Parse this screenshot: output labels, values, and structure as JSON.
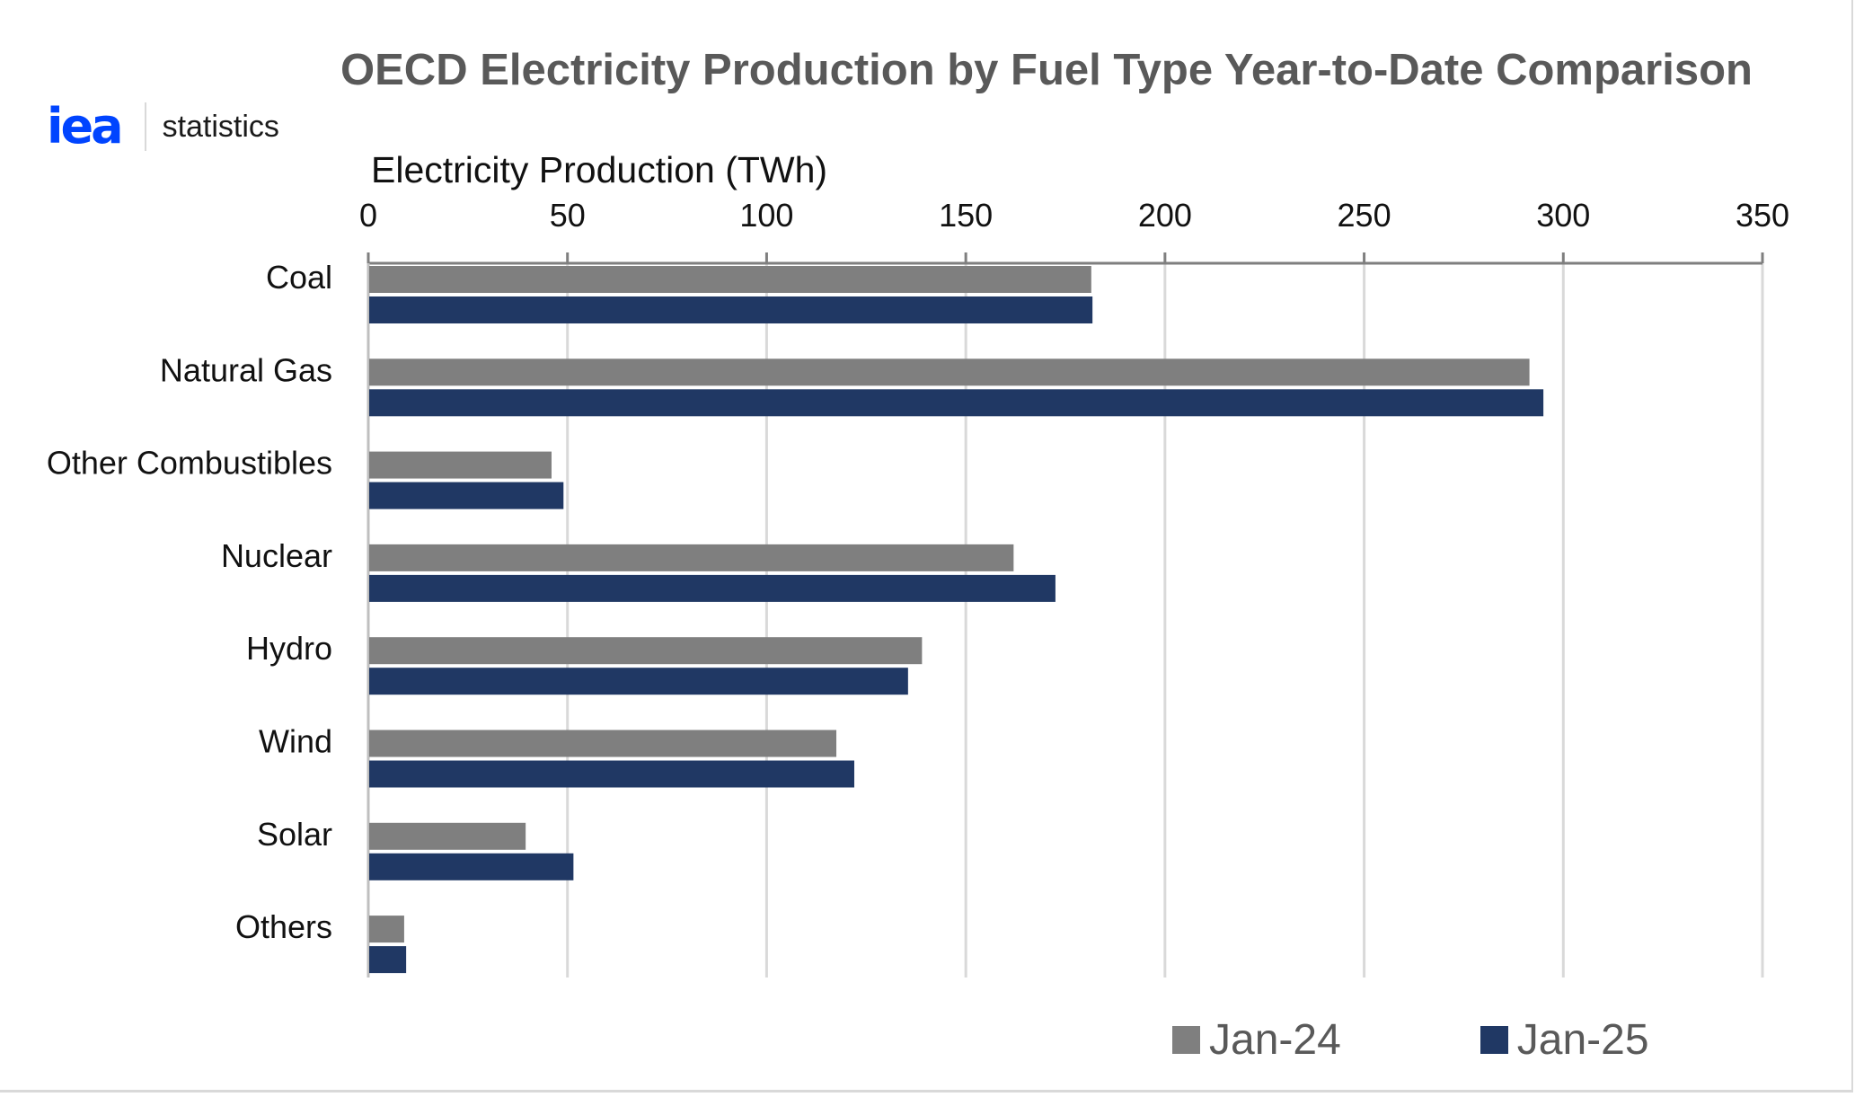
{
  "brand": {
    "logo_text": "iea",
    "label": "statistics"
  },
  "chart_data": {
    "type": "bar",
    "orientation": "horizontal",
    "title": "OECD Electricity Production by Fuel Type Year-to-Date Comparison",
    "xlabel": "Electricity Production (TWh)",
    "ylabel": "",
    "xlim": [
      0,
      350
    ],
    "xticks": [
      0,
      50,
      100,
      150,
      200,
      250,
      300,
      350
    ],
    "grid": "vertical",
    "legend_position": "bottom-right",
    "categories": [
      "Coal",
      "Natural Gas",
      "Other Combustibles",
      "Nuclear",
      "Hydro",
      "Wind",
      "Solar",
      "Others"
    ],
    "series": [
      {
        "name": "Jan-24",
        "color": "#7f7f7f",
        "values": [
          181.5,
          291.5,
          46,
          162,
          139,
          117.5,
          39.5,
          9
        ]
      },
      {
        "name": "Jan-25",
        "color": "#203864",
        "values": [
          181.8,
          295,
          49,
          172.5,
          135.5,
          122,
          51.5,
          9.5
        ]
      }
    ]
  }
}
